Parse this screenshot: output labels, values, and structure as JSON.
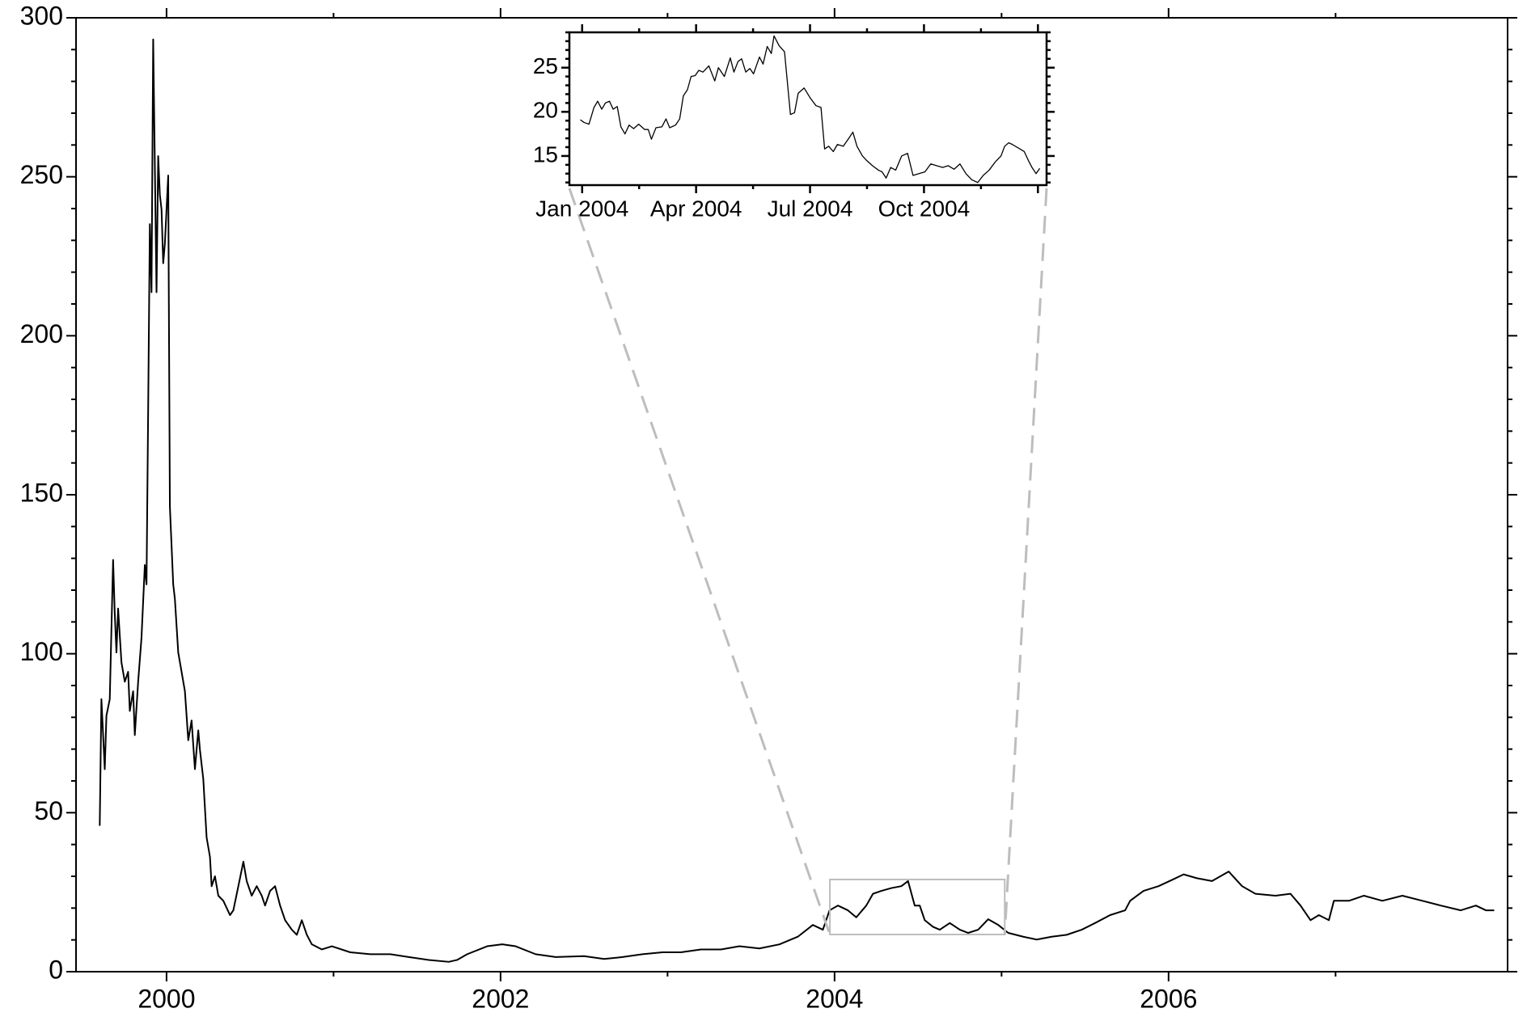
{
  "chart_data": [
    {
      "type": "line",
      "x": [
        1999.6,
        1999.61,
        1999.63,
        1999.64,
        1999.66,
        1999.68,
        1999.69,
        1999.7,
        1999.71,
        1999.73,
        1999.75,
        1999.77,
        1999.78,
        1999.8,
        1999.81,
        1999.83,
        1999.85,
        1999.87,
        1999.88,
        1999.89,
        1999.9,
        1999.91,
        1999.92,
        1999.94,
        1999.95,
        1999.96,
        1999.97,
        1999.98,
        1999.99,
        2000.01,
        2000.02,
        2000.03,
        2000.04,
        2000.05,
        2000.07,
        2000.09,
        2000.11,
        2000.13,
        2000.15,
        2000.17,
        2000.19,
        2000.2,
        2000.22,
        2000.24,
        2000.26,
        2000.27,
        2000.29,
        2000.31,
        2000.34,
        2000.38,
        2000.4,
        2000.43,
        2000.46,
        2000.48,
        2000.51,
        2000.54,
        2000.57,
        2000.59,
        2000.62,
        2000.65,
        2000.68,
        2000.71,
        2000.75,
        2000.78,
        2000.81,
        2000.84,
        2000.87,
        2000.93,
        2000.99,
        2001.1,
        2001.22,
        2001.34,
        2001.45,
        2001.57,
        2001.69,
        2001.74,
        2001.8,
        2001.92,
        2002.01,
        2002.09,
        2002.21,
        2002.33,
        2002.5,
        2002.62,
        2002.73,
        2002.85,
        2002.97,
        2003.08,
        2003.2,
        2003.32,
        2003.43,
        2003.55,
        2003.67,
        2003.78,
        2003.87,
        2003.93,
        2003.97,
        2004.02,
        2004.08,
        2004.13,
        2004.19,
        2004.23,
        2004.28,
        2004.34,
        2004.4,
        2004.44,
        2004.48,
        2004.51,
        2004.54,
        2004.59,
        2004.63,
        2004.69,
        2004.75,
        2004.8,
        2004.86,
        2004.92,
        2004.98,
        2005.04,
        2005.13,
        2005.21,
        2005.3,
        2005.39,
        2005.48,
        2005.56,
        2005.65,
        2005.74,
        2005.77,
        2005.85,
        2005.94,
        2006.03,
        2006.09,
        2006.17,
        2006.26,
        2006.36,
        2006.44,
        2006.52,
        2006.64,
        2006.73,
        2006.79,
        2006.85,
        2006.9,
        2006.96,
        2006.99,
        2007.08,
        2007.17,
        2007.28,
        2007.4,
        2007.52,
        2007.63,
        2007.75,
        2007.84,
        2007.9,
        2007.95
      ],
      "series": [
        {
          "color": "#000000",
          "values": [
            45.9,
            85.7,
            63.7,
            80.5,
            85.7,
            129.5,
            112.6,
            100.4,
            114.2,
            97.3,
            91.2,
            94.3,
            82.0,
            88.2,
            74.4,
            91.2,
            105.0,
            127.9,
            121.8,
            176.9,
            235.1,
            213.7,
            293.2,
            213.7,
            256.5,
            244.3,
            239.7,
            222.8,
            229.0,
            250.4,
            146.3,
            134.1,
            121.8,
            117.2,
            100.4,
            94.3,
            88.2,
            72.8,
            79.0,
            63.7,
            75.9,
            69.8,
            60.6,
            42.2,
            36.1,
            26.9,
            30.0,
            23.9,
            22.3,
            17.8,
            19.3,
            26.9,
            34.6,
            28.5,
            23.9,
            26.9,
            23.9,
            20.8,
            25.4,
            26.9,
            20.8,
            16.2,
            13.2,
            11.6,
            16.2,
            11.6,
            8.6,
            7.0,
            8.0,
            6.1,
            5.5,
            5.5,
            4.6,
            3.7,
            3.1,
            3.7,
            5.5,
            8.0,
            8.6,
            8.0,
            5.5,
            4.6,
            4.9,
            4.0,
            4.6,
            5.5,
            6.1,
            6.1,
            7.0,
            7.0,
            8.0,
            7.3,
            8.6,
            11.0,
            14.7,
            13.2,
            19.3,
            20.8,
            19.3,
            17.1,
            20.8,
            24.5,
            25.4,
            26.3,
            26.9,
            28.5,
            20.8,
            20.8,
            16.2,
            14.1,
            13.2,
            15.3,
            13.2,
            12.2,
            13.2,
            16.5,
            14.7,
            12.2,
            11.0,
            10.1,
            11.0,
            11.6,
            13.2,
            15.3,
            17.8,
            19.3,
            22.3,
            25.4,
            26.9,
            29.1,
            30.6,
            29.4,
            28.5,
            31.5,
            26.9,
            24.5,
            23.9,
            24.5,
            20.8,
            16.2,
            17.8,
            16.2,
            22.3,
            22.3,
            23.9,
            22.3,
            23.9,
            22.3,
            20.8,
            19.3,
            20.8,
            19.3,
            19.3
          ]
        }
      ],
      "xlim": [
        1999.458,
        2008.03
      ],
      "ylim": [
        0,
        300
      ],
      "xticks": [
        2000,
        2002,
        2004,
        2006
      ],
      "xminorticks": [
        2001,
        2003,
        2005,
        2007
      ],
      "yticks": [
        0,
        50,
        100,
        150,
        200,
        250,
        300
      ],
      "yminorticks": [
        10,
        20,
        30,
        40,
        60,
        70,
        80,
        90,
        110,
        120,
        130,
        140,
        160,
        170,
        180,
        190,
        210,
        220,
        230,
        240,
        260,
        270,
        280,
        290
      ]
    },
    {
      "type": "line",
      "x": [
        2003.996,
        2004.004,
        2004.015,
        2004.026,
        2004.034,
        2004.043,
        2004.051,
        2004.06,
        2004.068,
        2004.077,
        2004.085,
        2004.094,
        2004.103,
        2004.113,
        2004.124,
        2004.137,
        2004.145,
        2004.152,
        2004.162,
        2004.175,
        2004.184,
        2004.192,
        2004.205,
        2004.214,
        2004.222,
        2004.231,
        2004.239,
        2004.248,
        2004.256,
        2004.265,
        2004.278,
        2004.291,
        2004.299,
        2004.312,
        2004.325,
        2004.333,
        2004.342,
        2004.35,
        2004.359,
        2004.368,
        2004.376,
        2004.389,
        2004.397,
        2004.406,
        2004.415,
        2004.421,
        2004.432,
        2004.444,
        2004.457,
        2004.466,
        2004.474,
        2004.487,
        2004.5,
        2004.513,
        2004.524,
        2004.532,
        2004.541,
        2004.551,
        2004.56,
        2004.573,
        2004.585,
        2004.594,
        2004.603,
        2004.615,
        2004.624,
        2004.637,
        2004.65,
        2004.658,
        2004.667,
        2004.677,
        2004.688,
        2004.701,
        2004.714,
        2004.726,
        2004.739,
        2004.752,
        2004.765,
        2004.778,
        2004.791,
        2004.803,
        2004.816,
        2004.829,
        2004.842,
        2004.855,
        2004.868,
        2004.88,
        2004.893,
        2004.906,
        2004.919,
        2004.927,
        2004.936,
        2004.944,
        2004.957,
        2004.97,
        2004.979,
        2004.987,
        2004.996,
        2005.004
      ],
      "series": [
        {
          "color": "#000000",
          "values": [
            19.1,
            18.8,
            18.6,
            20.5,
            21.2,
            20.3,
            21.0,
            21.2,
            20.3,
            20.6,
            18.3,
            17.5,
            18.5,
            18.1,
            18.6,
            18.0,
            18.0,
            16.9,
            18.2,
            18.3,
            19.2,
            18.2,
            18.5,
            19.2,
            21.8,
            22.5,
            24.0,
            24.1,
            24.7,
            24.5,
            25.2,
            23.5,
            25.0,
            24.0,
            26.1,
            24.5,
            25.7,
            26.0,
            24.5,
            24.9,
            24.3,
            26.2,
            25.4,
            27.4,
            26.6,
            28.6,
            27.5,
            26.8,
            19.7,
            19.9,
            22.1,
            22.7,
            21.6,
            20.7,
            20.5,
            15.8,
            16.1,
            15.5,
            16.3,
            16.1,
            17.0,
            17.7,
            16.1,
            15.0,
            14.5,
            13.9,
            13.4,
            13.2,
            12.5,
            13.7,
            13.4,
            15.0,
            15.3,
            12.8,
            13.0,
            13.2,
            14.1,
            13.9,
            13.7,
            13.9,
            13.5,
            14.1,
            13.0,
            12.3,
            12.0,
            12.8,
            13.4,
            14.3,
            15.0,
            16.1,
            16.5,
            16.3,
            15.9,
            15.5,
            14.5,
            13.7,
            13.0,
            13.6
          ]
        }
      ],
      "xlim": [
        2003.972,
        2005.019
      ],
      "ylim": [
        11.7,
        29.0
      ],
      "xticks": [
        {
          "value": 2004.0,
          "label": "Jan 2004"
        },
        {
          "value": 2004.25,
          "label": "Apr 2004"
        },
        {
          "value": 2004.5,
          "label": "Jul 2004"
        },
        {
          "value": 2004.75,
          "label": "Oct 2004"
        },
        {
          "value": 2005.0,
          "label": null
        }
      ],
      "xminorticks": [
        2004.125,
        2004.375,
        2004.625,
        2004.875
      ],
      "yticks": [
        15,
        20,
        25
      ],
      "yminorticks": [
        12,
        13,
        14,
        16,
        17,
        18,
        19,
        21,
        22,
        23,
        24,
        26,
        27,
        28,
        29
      ],
      "zoom_color": "#bdbdbd"
    }
  ]
}
